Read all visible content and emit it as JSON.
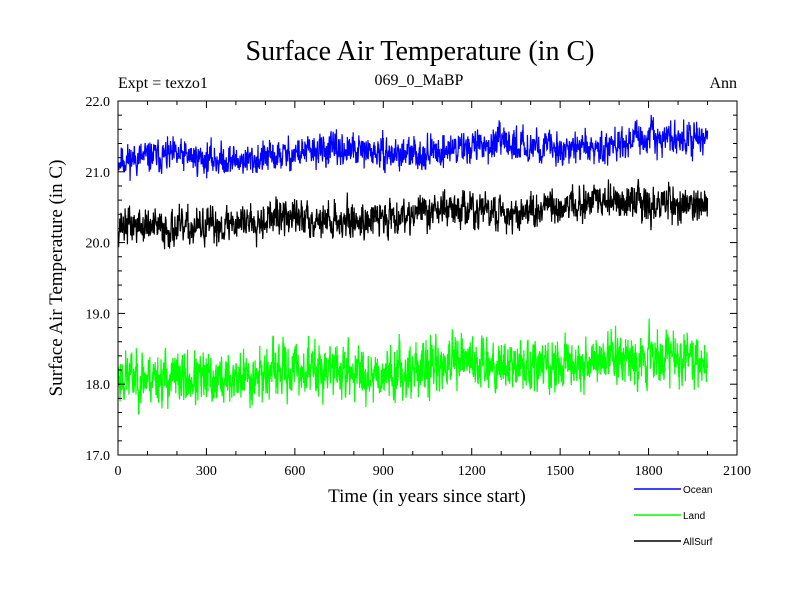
{
  "chart_data": {
    "type": "line",
    "title": "Surface Air Temperature (in C)",
    "subtitle_left": "Expt = texzo1",
    "subtitle_center": "069_0_MaBP",
    "subtitle_right": "Ann",
    "xlabel": "Time (in years since start)",
    "ylabel": "Surface Air Temperature (in C)",
    "xlim": [
      0,
      2100
    ],
    "ylim": [
      17.0,
      22.0
    ],
    "xticks": [
      0,
      300,
      600,
      900,
      1200,
      1500,
      1800,
      2100
    ],
    "xtick_labels": [
      "0",
      "300",
      "600",
      "900",
      "1200",
      "1500",
      "1800",
      "2100"
    ],
    "yticks": [
      17.0,
      18.0,
      19.0,
      20.0,
      21.0,
      22.0
    ],
    "ytick_labels": [
      "17.0",
      "18.0",
      "19.0",
      "20.0",
      "21.0",
      "22.0"
    ],
    "x_range": [
      1,
      2000
    ],
    "series": [
      {
        "name": "Ocean",
        "color": "#0000ff",
        "start": 21.15,
        "end": 21.45,
        "noise": 0.13,
        "seed": 11
      },
      {
        "name": "Land",
        "color": "#00ff00",
        "start": 18.05,
        "end": 18.4,
        "noise": 0.22,
        "seed": 23
      },
      {
        "name": "AllSurf",
        "color": "#000000",
        "start": 20.2,
        "end": 20.6,
        "noise": 0.15,
        "seed": 37
      }
    ]
  }
}
